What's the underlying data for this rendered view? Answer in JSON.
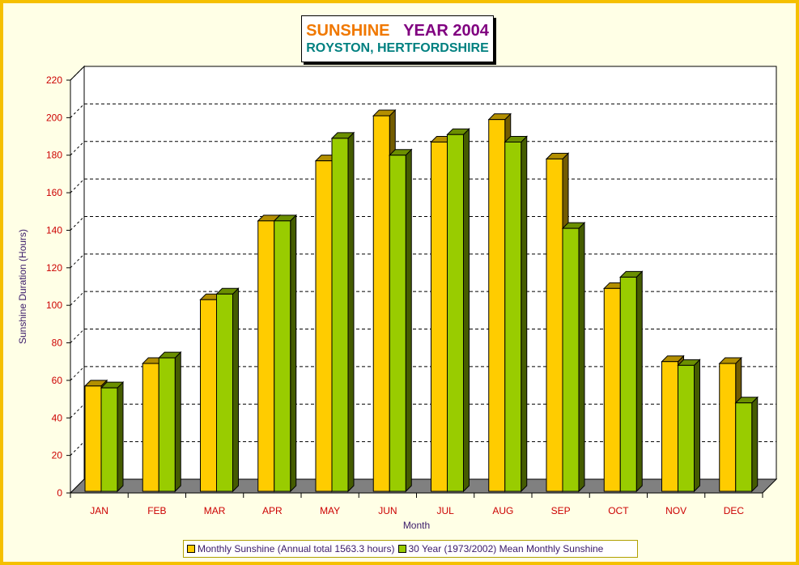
{
  "title": {
    "part1": "SUNSHINE",
    "part2": "YEAR 2004",
    "subtitle": "ROYSTON, HERTFORDSHIRE"
  },
  "colors": {
    "title1": "#F07800",
    "title2": "#800080",
    "subtitle": "#008080",
    "series1": "#FFCC00",
    "series2": "#99CC00",
    "axis_label": "#3A1A6A",
    "tick_label": "#CC0000",
    "frame": "#F5C000",
    "background": "#FFFFE6"
  },
  "chart_data": {
    "type": "bar",
    "title": "SUNSHINE YEAR 2004",
    "subtitle": "ROYSTON, HERTFORDSHIRE",
    "xlabel": "Month",
    "ylabel": "Sunshine Duration (Hours)",
    "ylim": [
      0,
      220
    ],
    "yticks": [
      0,
      20,
      40,
      60,
      80,
      100,
      120,
      140,
      160,
      180,
      200,
      220
    ],
    "grid": true,
    "legend_position": "bottom",
    "categories": [
      "JAN",
      "FEB",
      "MAR",
      "APR",
      "MAY",
      "JUN",
      "JUL",
      "AUG",
      "SEP",
      "OCT",
      "NOV",
      "DEC"
    ],
    "series": [
      {
        "name": "Monthly Sunshine (Annual total 1563.3 hours)",
        "values": [
          57,
          69,
          103,
          145,
          177,
          201,
          187,
          199,
          178,
          109,
          70,
          69
        ]
      },
      {
        "name": "30 Year (1973/2002) Mean Monthly Sunshine",
        "values": [
          56,
          72,
          106,
          145,
          189,
          180,
          191,
          187,
          141,
          115,
          68,
          48
        ]
      }
    ]
  }
}
